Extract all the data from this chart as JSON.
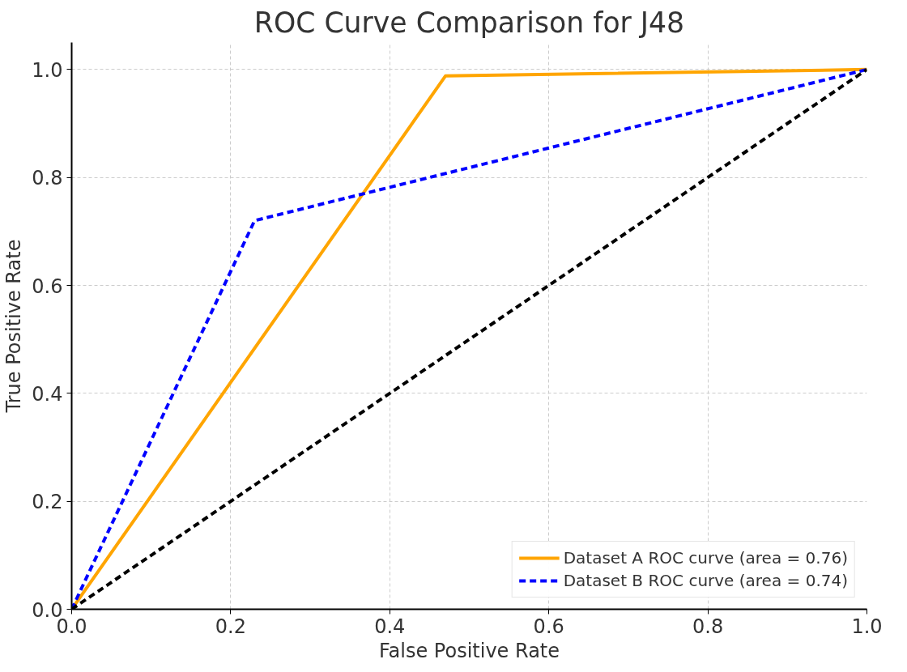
{
  "chart_data": {
    "type": "line",
    "title": "ROC Curve Comparison for J48",
    "xlabel": "False Positive Rate",
    "ylabel": "True Positive Rate",
    "xlim": [
      0,
      1
    ],
    "ylim": [
      0,
      1.05
    ],
    "xticks": [
      {
        "value": 0,
        "label": "0.0"
      },
      0.2,
      0.4,
      0.6,
      0.8,
      {
        "value": 1,
        "label": "1.0"
      }
    ],
    "yticks": [
      {
        "value": 0,
        "label": "0.0"
      },
      0.2,
      0.4,
      0.6,
      0.8,
      {
        "value": 1,
        "label": "1.0"
      }
    ],
    "series": [
      {
        "name": "Dataset A ROC curve (area = 0.76)",
        "color": "#ffa500",
        "x": [
          0,
          0.47,
          1
        ],
        "values": [
          0,
          0.988,
          1
        ],
        "line_style": "solid"
      },
      {
        "name": "Dataset B ROC curve (area = 0.74)",
        "color": "#0000ff",
        "x": [
          0,
          0.23,
          1
        ],
        "values": [
          0,
          0.72,
          1
        ],
        "line_style": "dashed"
      },
      {
        "color": "#000000",
        "x": [
          0,
          1
        ],
        "values": [
          0,
          1
        ],
        "line_style": "dashed"
      }
    ],
    "grid": true,
    "legend": "bottom right",
    "marker": "none"
  }
}
